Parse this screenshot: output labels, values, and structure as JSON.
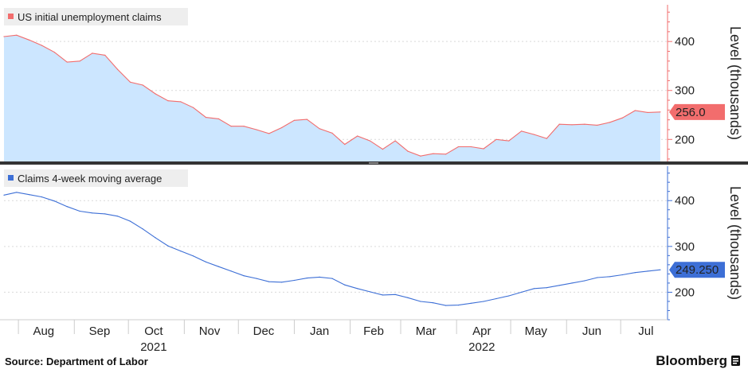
{
  "chart_data": [
    {
      "type": "area",
      "legend": "US initial unemployment claims",
      "ylabel": "Level (thousands)",
      "yticks": [
        200,
        300,
        400
      ],
      "ylim": [
        155,
        475
      ],
      "last_value_label": "256.0",
      "color": "#f26d6d",
      "fill": "#cce6ff",
      "x": [
        "2021-07-24",
        "2021-07-31",
        "2021-08-07",
        "2021-08-14",
        "2021-08-21",
        "2021-08-28",
        "2021-09-04",
        "2021-09-11",
        "2021-09-18",
        "2021-09-25",
        "2021-10-02",
        "2021-10-09",
        "2021-10-16",
        "2021-10-23",
        "2021-10-30",
        "2021-11-06",
        "2021-11-13",
        "2021-11-20",
        "2021-11-27",
        "2021-12-04",
        "2021-12-11",
        "2021-12-18",
        "2021-12-25",
        "2022-01-01",
        "2022-01-08",
        "2022-01-15",
        "2022-01-22",
        "2022-01-29",
        "2022-02-05",
        "2022-02-12",
        "2022-02-19",
        "2022-02-26",
        "2022-03-05",
        "2022-03-12",
        "2022-03-19",
        "2022-03-26",
        "2022-04-02",
        "2022-04-09",
        "2022-04-16",
        "2022-04-23",
        "2022-04-30",
        "2022-05-07",
        "2022-05-14",
        "2022-05-21",
        "2022-05-28",
        "2022-06-04",
        "2022-06-11",
        "2022-06-18",
        "2022-06-25",
        "2022-07-02",
        "2022-07-09",
        "2022-07-16",
        "2022-07-23"
      ],
      "values": [
        410,
        413,
        403,
        392,
        378,
        358,
        360,
        376,
        372,
        343,
        317,
        311,
        293,
        279,
        277,
        265,
        245,
        242,
        227,
        227,
        220,
        212,
        224,
        239,
        241,
        222,
        213,
        190,
        207,
        197,
        180,
        197,
        176,
        166,
        171,
        170,
        185,
        185,
        181,
        200,
        197,
        217,
        210,
        202,
        231,
        230,
        231,
        229,
        235,
        244,
        259,
        255,
        256
      ]
    },
    {
      "type": "line",
      "legend": "Claims 4-week moving average",
      "ylabel": "Level (thousands)",
      "yticks": [
        200,
        300,
        400
      ],
      "ylim": [
        140,
        475
      ],
      "last_value_label": "249.250",
      "color": "#3d6fd6",
      "x": [
        "2021-07-24",
        "2021-07-31",
        "2021-08-07",
        "2021-08-14",
        "2021-08-21",
        "2021-08-28",
        "2021-09-04",
        "2021-09-11",
        "2021-09-18",
        "2021-09-25",
        "2021-10-02",
        "2021-10-09",
        "2021-10-16",
        "2021-10-23",
        "2021-10-30",
        "2021-11-06",
        "2021-11-13",
        "2021-11-20",
        "2021-11-27",
        "2021-12-04",
        "2021-12-11",
        "2021-12-18",
        "2021-12-25",
        "2022-01-01",
        "2022-01-08",
        "2022-01-15",
        "2022-01-22",
        "2022-01-29",
        "2022-02-05",
        "2022-02-12",
        "2022-02-19",
        "2022-02-26",
        "2022-03-05",
        "2022-03-12",
        "2022-03-19",
        "2022-03-26",
        "2022-04-02",
        "2022-04-09",
        "2022-04-16",
        "2022-04-23",
        "2022-04-30",
        "2022-05-07",
        "2022-05-14",
        "2022-05-21",
        "2022-05-28",
        "2022-06-04",
        "2022-06-11",
        "2022-06-18",
        "2022-06-25",
        "2022-07-02",
        "2022-07-09",
        "2022-07-16",
        "2022-07-23"
      ],
      "values": [
        412,
        418,
        413,
        408,
        399,
        387,
        377,
        373,
        371,
        366,
        355,
        338,
        319,
        301,
        290,
        279,
        266,
        256,
        246,
        236,
        230,
        223,
        222,
        226,
        231,
        233,
        230,
        216,
        208,
        201,
        194,
        195,
        188,
        180,
        177,
        171,
        172,
        176,
        180,
        186,
        192,
        200,
        208,
        210,
        215,
        220,
        225,
        232,
        234,
        238,
        243,
        246,
        249
      ]
    }
  ],
  "x_axis": {
    "months": [
      {
        "label": "Aug",
        "date": "2021-08-15"
      },
      {
        "label": "Sep",
        "date": "2021-09-15"
      },
      {
        "label": "Oct",
        "date": "2021-10-15"
      },
      {
        "label": "Nov",
        "date": "2021-11-15"
      },
      {
        "label": "Dec",
        "date": "2021-12-15"
      },
      {
        "label": "Jan",
        "date": "2022-01-15"
      },
      {
        "label": "Feb",
        "date": "2022-02-14"
      },
      {
        "label": "Mar",
        "date": "2022-03-15"
      },
      {
        "label": "Apr",
        "date": "2022-04-15"
      },
      {
        "label": "May",
        "date": "2022-05-15"
      },
      {
        "label": "Jun",
        "date": "2022-06-15"
      },
      {
        "label": "Jul",
        "date": "2022-07-15"
      }
    ],
    "years": [
      {
        "label": "2021",
        "date": "2021-10-15"
      },
      {
        "label": "2022",
        "date": "2022-04-15"
      }
    ],
    "range": [
      "2021-07-24",
      "2022-07-27"
    ]
  },
  "footer": {
    "source": "Source: Department of Labor",
    "brand": "Bloomberg"
  }
}
